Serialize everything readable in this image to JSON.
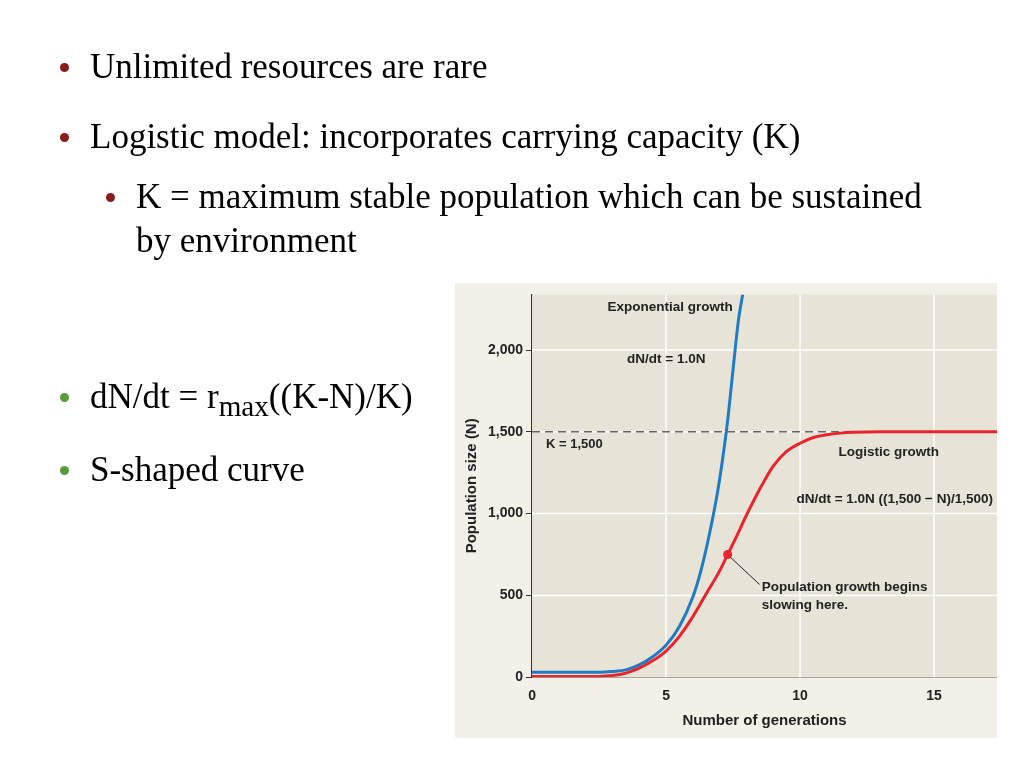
{
  "chart_data": {
    "type": "line",
    "xlabel": "Number of generations",
    "ylabel": "Population size (N)",
    "xlim": [
      0,
      17.35
    ],
    "ylim": [
      0,
      2340
    ],
    "xticks": [
      0,
      5,
      10,
      15
    ],
    "yticks": [
      0,
      500,
      {
        "value": 1000,
        "label": "1,000"
      },
      {
        "value": 1500,
        "label": "1,500"
      },
      {
        "value": 2000,
        "label": "2,000"
      }
    ],
    "grid": true,
    "legend": false,
    "marker": "none",
    "line_style": "solid",
    "series": [
      {
        "name": "Exponential growth",
        "color": "#1f7bc4",
        "x": [
          0,
          1,
          2,
          2.5,
          3,
          3.5,
          4,
          4.5,
          5,
          5.5,
          6,
          6.3,
          6.6,
          6.9,
          7.1,
          7.3,
          7.5,
          7.7,
          7.86
        ],
        "values": [
          30,
          30,
          30,
          30,
          35,
          45,
          75,
          125,
          195,
          310,
          490,
          650,
          860,
          1110,
          1320,
          1570,
          1880,
          2180,
          2340
        ]
      },
      {
        "name": "Logistic growth",
        "color": "#e8242c",
        "x": [
          0,
          1,
          2,
          2.5,
          3,
          3.5,
          4,
          4.5,
          5,
          5.5,
          6,
          6.5,
          7,
          7.3,
          7.6,
          8,
          8.5,
          9,
          9.5,
          10,
          10.5,
          11,
          11.5,
          12,
          13,
          14,
          15,
          16,
          17.35
        ],
        "values": [
          5,
          5,
          5,
          5,
          10,
          25,
          55,
          100,
          160,
          250,
          370,
          510,
          650,
          750,
          850,
          990,
          1150,
          1290,
          1380,
          1430,
          1465,
          1482,
          1492,
          1497,
          1500,
          1500,
          1500,
          1500,
          1500
        ]
      }
    ],
    "ref_lines": [
      {
        "axis": "y",
        "value": 1500,
        "label": "K = 1,500",
        "line_style": "dashed",
        "color": "#666666"
      }
    ],
    "annotations": [
      "Unlimited resources are rare",
      "Logistic model: incorporates carrying capacity (K)",
      "K = maximum stable population which can be sustained by environment",
      "dN/dt = r$_{max}$((K-N)/K)",
      "S-shaped curve",
      "dN/dt = 1.0N",
      "dN/dt = 1.0N ((1,500 − N)/1,500)",
      {
        "text": "Population growth begins slowing here.",
        "x": 7.3,
        "y": 750
      }
    ]
  }
}
